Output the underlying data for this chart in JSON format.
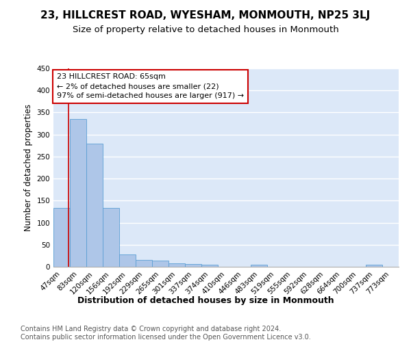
{
  "title": "23, HILLCREST ROAD, WYESHAM, MONMOUTH, NP25 3LJ",
  "subtitle": "Size of property relative to detached houses in Monmouth",
  "xlabel": "Distribution of detached houses by size in Monmouth",
  "ylabel": "Number of detached properties",
  "footer_line1": "Contains HM Land Registry data © Crown copyright and database right 2024.",
  "footer_line2": "Contains public sector information licensed under the Open Government Licence v3.0.",
  "bar_labels": [
    "47sqm",
    "83sqm",
    "120sqm",
    "156sqm",
    "192sqm",
    "229sqm",
    "265sqm",
    "301sqm",
    "337sqm",
    "374sqm",
    "410sqm",
    "446sqm",
    "483sqm",
    "519sqm",
    "555sqm",
    "592sqm",
    "628sqm",
    "664sqm",
    "700sqm",
    "737sqm",
    "773sqm"
  ],
  "bar_values": [
    133,
    335,
    280,
    133,
    28,
    16,
    14,
    8,
    6,
    5,
    0,
    0,
    4,
    0,
    0,
    0,
    0,
    0,
    0,
    4,
    0
  ],
  "bar_color": "#aec6e8",
  "bar_edge_color": "#5a9fd4",
  "background_color": "#dce8f8",
  "annotation_text": "23 HILLCREST ROAD: 65sqm\n← 2% of detached houses are smaller (22)\n97% of semi-detached houses are larger (917) →",
  "annotation_box_color": "#ffffff",
  "annotation_box_edge": "#cc0000",
  "red_line_x": 0.42,
  "ylim": [
    0,
    450
  ],
  "yticks": [
    0,
    50,
    100,
    150,
    200,
    250,
    300,
    350,
    400,
    450
  ],
  "title_fontsize": 11,
  "subtitle_fontsize": 9.5,
  "ylabel_fontsize": 8.5,
  "xlabel_fontsize": 9,
  "tick_fontsize": 7.5,
  "footer_fontsize": 7,
  "ann_fontsize": 8
}
